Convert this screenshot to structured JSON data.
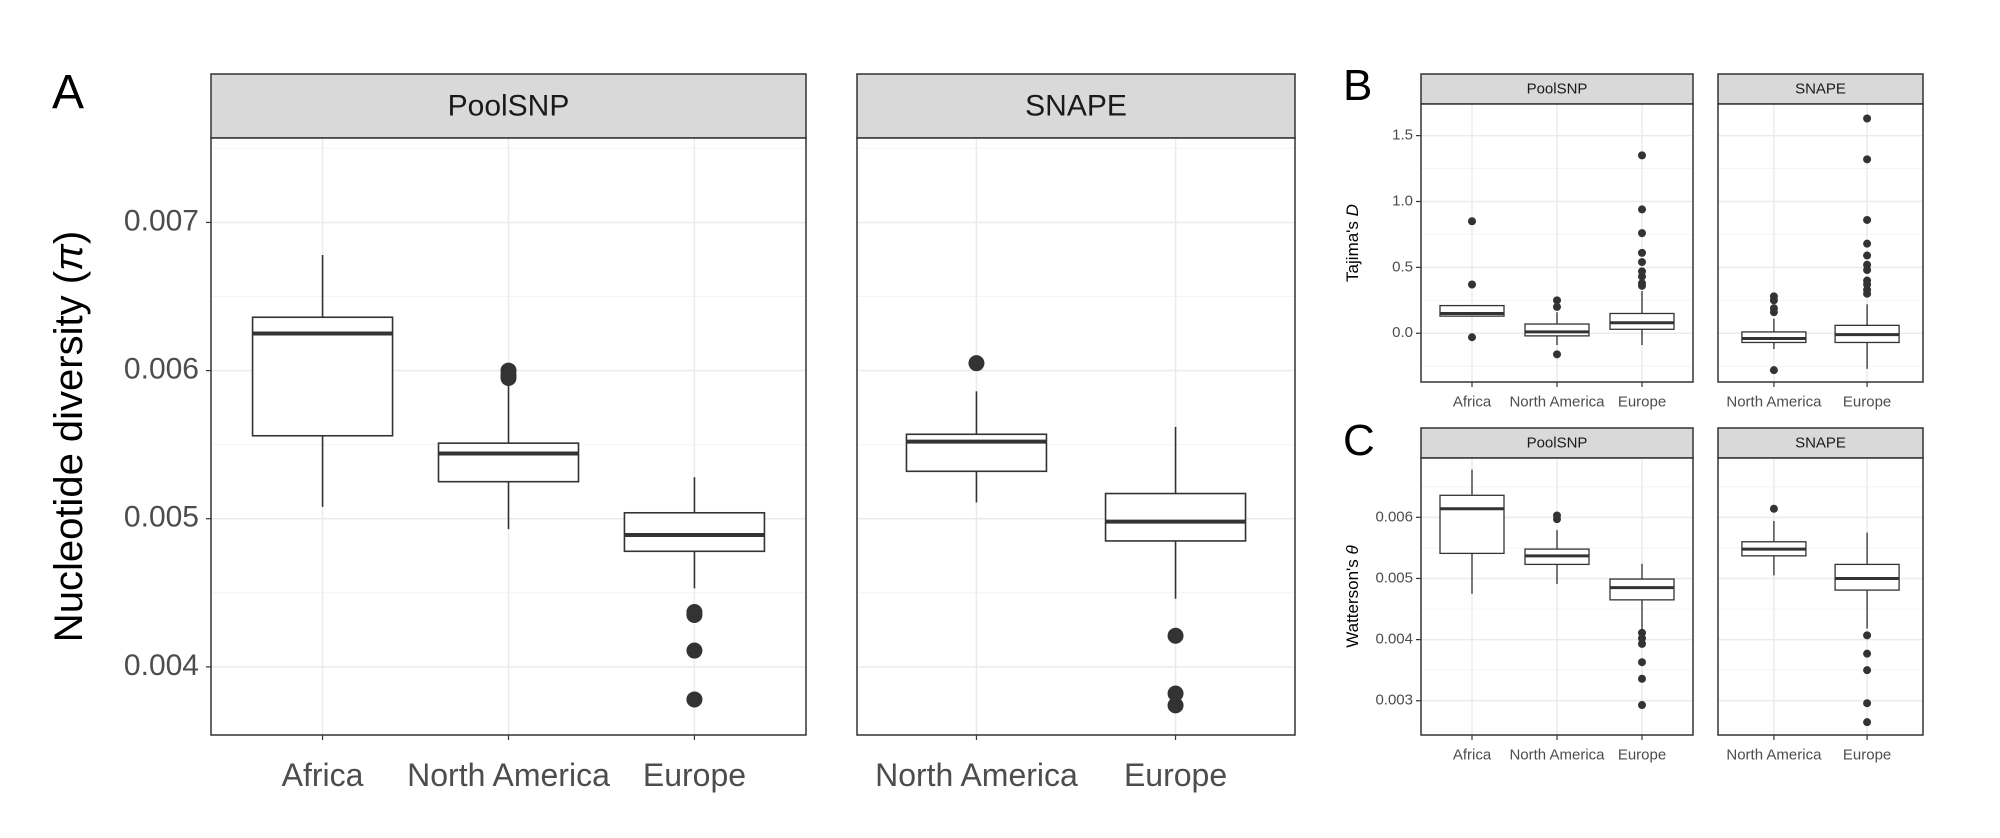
{
  "chart_data": [
    {
      "tag": "A",
      "type": "box",
      "ylabel_text": "Nucleotide diversity (",
      "ylabel_symbol": "π",
      "ylabel_suffix": ")",
      "ylim": [
        0.00354,
        0.00757
      ],
      "yticks": [
        0.004,
        0.005,
        0.006,
        0.007
      ],
      "ytick_labels": [
        "0.004",
        "0.005",
        "0.006",
        "0.007"
      ],
      "panels": [
        {
          "strip": "PoolSNP",
          "categories": [
            "Africa",
            "North America",
            "Europe"
          ],
          "boxes": [
            {
              "min": 0.00508,
              "q1": 0.00556,
              "median": 0.00625,
              "q3": 0.00636,
              "max": 0.00678,
              "outliers": []
            },
            {
              "min": 0.00493,
              "q1": 0.00525,
              "median": 0.00544,
              "q3": 0.00551,
              "max": 0.00594,
              "outliers": [
                0.00595,
                0.00597,
                0.006
              ]
            },
            {
              "min": 0.00453,
              "q1": 0.00478,
              "median": 0.00489,
              "q3": 0.00504,
              "max": 0.00528,
              "outliers": [
                0.00437,
                0.00435,
                0.00411,
                0.00378
              ]
            }
          ]
        },
        {
          "strip": "SNAPE",
          "categories": [
            "North America",
            "Europe"
          ],
          "boxes": [
            {
              "min": 0.00511,
              "q1": 0.00532,
              "median": 0.00552,
              "q3": 0.00557,
              "max": 0.00586,
              "outliers": [
                0.00605
              ]
            },
            {
              "min": 0.00446,
              "q1": 0.00485,
              "median": 0.00498,
              "q3": 0.00517,
              "max": 0.00562,
              "outliers": [
                0.00421,
                0.00382,
                0.00374
              ]
            }
          ]
        }
      ]
    },
    {
      "tag": "B",
      "type": "box",
      "ylabel_text": "Tajima's ",
      "ylabel_symbol": "D",
      "ylabel_suffix": "",
      "ylim": [
        -0.37,
        1.74
      ],
      "yticks": [
        0.0,
        0.5,
        1.0,
        1.5
      ],
      "ytick_labels": [
        "0.0",
        "0.5",
        "1.0",
        "1.5"
      ],
      "panels": [
        {
          "strip": "PoolSNP",
          "categories": [
            "Africa",
            "North America",
            "Europe"
          ],
          "boxes": [
            {
              "min": 0.13,
              "q1": 0.13,
              "median": 0.15,
              "q3": 0.21,
              "max": 0.21,
              "outliers": [
                0.85,
                0.37,
                -0.03
              ]
            },
            {
              "min": -0.09,
              "q1": -0.02,
              "median": 0.01,
              "q3": 0.07,
              "max": 0.16,
              "outliers": [
                0.25,
                0.2,
                -0.16
              ]
            },
            {
              "min": -0.09,
              "q1": 0.03,
              "median": 0.08,
              "q3": 0.15,
              "max": 0.32,
              "outliers": [
                1.35,
                0.94,
                0.76,
                0.61,
                0.54,
                0.47,
                0.43,
                0.38,
                0.36
              ]
            }
          ]
        },
        {
          "strip": "SNAPE",
          "categories": [
            "North America",
            "Europe"
          ],
          "boxes": [
            {
              "min": -0.12,
              "q1": -0.07,
              "median": -0.04,
              "q3": 0.01,
              "max": 0.11,
              "outliers": [
                0.28,
                0.25,
                0.19,
                0.16,
                -0.28
              ]
            },
            {
              "min": -0.27,
              "q1": -0.07,
              "median": -0.01,
              "q3": 0.06,
              "max": 0.22,
              "outliers": [
                1.63,
                1.32,
                0.86,
                0.68,
                0.59,
                0.52,
                0.48,
                0.4,
                0.37,
                0.33,
                0.3
              ]
            }
          ]
        }
      ]
    },
    {
      "tag": "C",
      "type": "box",
      "ylabel_text": "Watterson's ",
      "ylabel_symbol": "θ",
      "ylabel_suffix": "",
      "ylim": [
        0.00244,
        0.00697
      ],
      "yticks": [
        0.003,
        0.004,
        0.005,
        0.006
      ],
      "ytick_labels": [
        "0.003",
        "0.004",
        "0.005",
        "0.006"
      ],
      "panels": [
        {
          "strip": "PoolSNP",
          "categories": [
            "Africa",
            "North America",
            "Europe"
          ],
          "boxes": [
            {
              "min": 0.00475,
              "q1": 0.00541,
              "median": 0.00614,
              "q3": 0.00636,
              "max": 0.00678,
              "outliers": []
            },
            {
              "min": 0.00491,
              "q1": 0.00523,
              "median": 0.00537,
              "q3": 0.00548,
              "max": 0.00579,
              "outliers": [
                0.00597,
                0.00603
              ]
            },
            {
              "min": 0.00415,
              "q1": 0.00465,
              "median": 0.00485,
              "q3": 0.00499,
              "max": 0.00524,
              "outliers": [
                0.00411,
                0.00402,
                0.00393,
                0.00363,
                0.00336,
                0.00293
              ]
            }
          ]
        },
        {
          "strip": "SNAPE",
          "categories": [
            "North America",
            "Europe"
          ],
          "boxes": [
            {
              "min": 0.00505,
              "q1": 0.00537,
              "median": 0.00548,
              "q3": 0.0056,
              "max": 0.00594,
              "outliers": [
                0.00614
              ]
            },
            {
              "min": 0.00418,
              "q1": 0.00481,
              "median": 0.005,
              "q3": 0.00523,
              "max": 0.00575,
              "outliers": [
                0.00407,
                0.00377,
                0.0035,
                0.00296,
                0.00265
              ]
            }
          ]
        }
      ]
    }
  ]
}
